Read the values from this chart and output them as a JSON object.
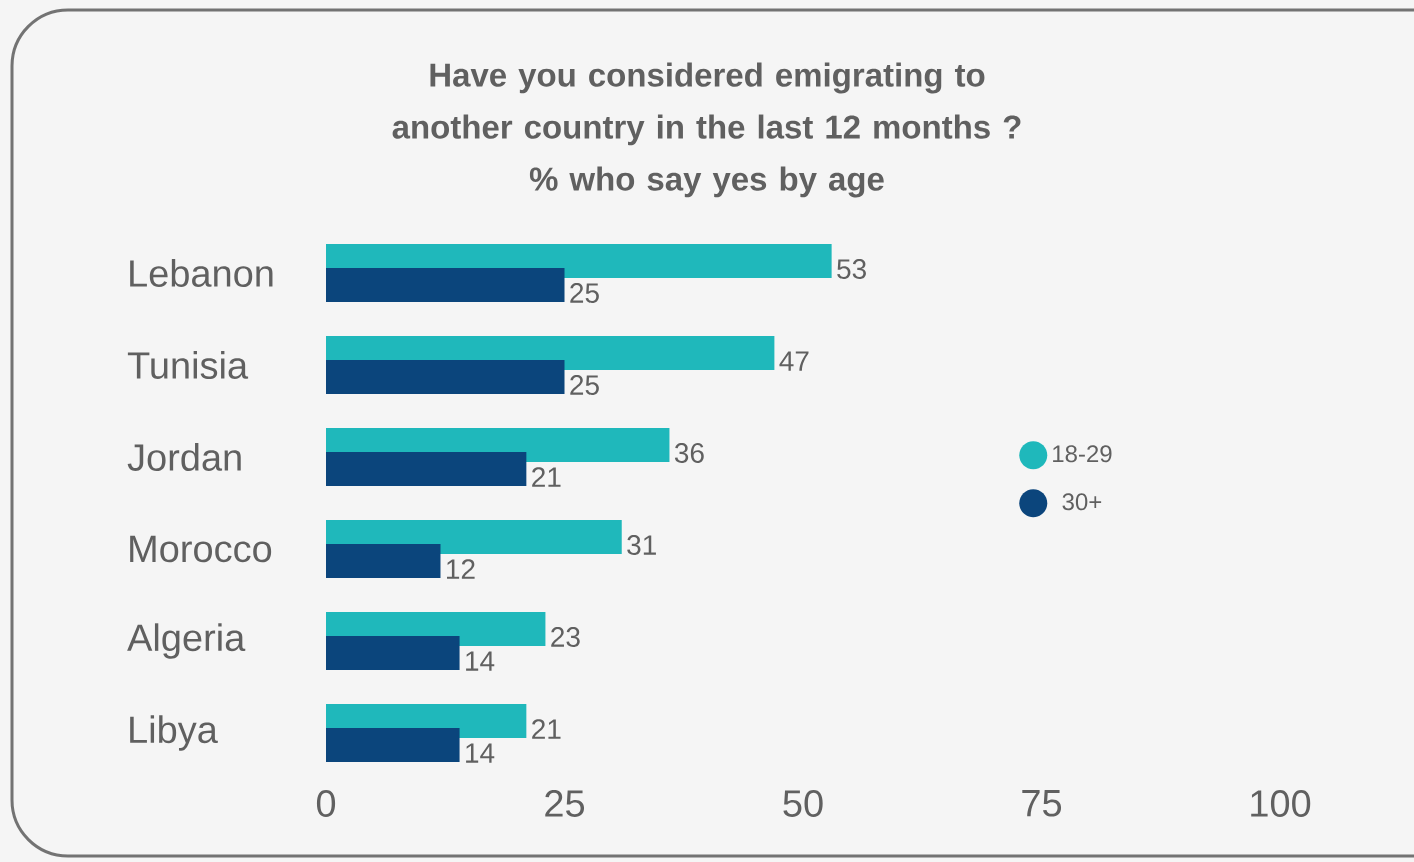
{
  "chart_data": {
    "type": "bar",
    "orientation": "horizontal",
    "title": "Have you considered emigrating to another country in the last 12 months ?",
    "subtitle": "% who say yes by age",
    "categories": [
      "Lebanon",
      "Tunisia",
      "Jordan",
      "Morocco",
      "Algeria",
      "Libya"
    ],
    "series": [
      {
        "name": "18-29",
        "color": "#1fb8bb",
        "values": [
          53,
          47,
          36,
          31,
          23,
          21
        ]
      },
      {
        "name": "30+",
        "color": "#0b457c",
        "values": [
          25,
          25,
          21,
          12,
          14,
          14
        ]
      }
    ],
    "xlim": [
      0,
      100
    ],
    "xticks": [
      0,
      25,
      50,
      75,
      100
    ],
    "data_labels": true,
    "legend": "right",
    "grid": false
  }
}
